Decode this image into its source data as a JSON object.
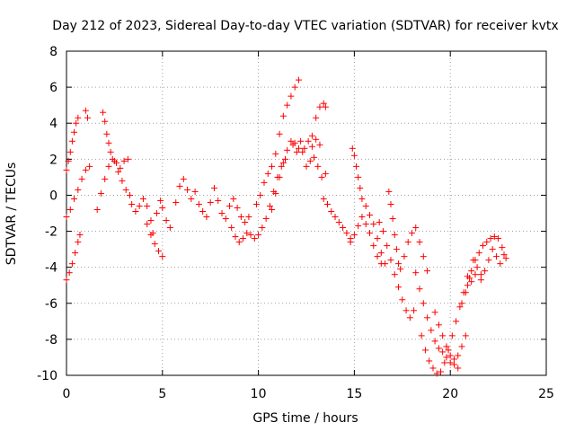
{
  "chart_data": {
    "type": "scatter",
    "title": "Day 212 of 2023, Sidereal Day-to-day VTEC variation (SDTVAR) for receiver kvtx",
    "xlabel": "GPS time / hours",
    "ylabel": "SDTVAR / TECUs",
    "xlim": [
      0,
      25
    ],
    "ylim": [
      -10,
      8
    ],
    "xticks": [
      0,
      5,
      10,
      15,
      20,
      25
    ],
    "yticks": [
      -10,
      -8,
      -6,
      -4,
      -2,
      0,
      2,
      4,
      6,
      8
    ],
    "grid": true,
    "marker": "+",
    "series": [
      {
        "color": "#ff0000",
        "points": [
          [
            0.0,
            1.4
          ],
          [
            0.1,
            1.9
          ],
          [
            0.2,
            2.4
          ],
          [
            0.3,
            3.0
          ],
          [
            0.4,
            3.5
          ],
          [
            0.5,
            4.0
          ],
          [
            0.6,
            4.3
          ],
          [
            1.0,
            4.7
          ],
          [
            1.1,
            4.3
          ],
          [
            0.0,
            -1.2
          ],
          [
            0.2,
            -0.8
          ],
          [
            0.4,
            -0.2
          ],
          [
            0.6,
            0.3
          ],
          [
            0.8,
            0.9
          ],
          [
            1.0,
            1.4
          ],
          [
            1.2,
            1.6
          ],
          [
            0.0,
            -4.7
          ],
          [
            0.15,
            -4.3
          ],
          [
            0.3,
            -3.8
          ],
          [
            0.45,
            -3.2
          ],
          [
            0.6,
            -2.6
          ],
          [
            0.7,
            -2.2
          ],
          [
            1.9,
            4.6
          ],
          [
            2.0,
            4.1
          ],
          [
            2.1,
            3.4
          ],
          [
            2.2,
            2.9
          ],
          [
            2.3,
            2.4
          ],
          [
            2.5,
            1.9
          ],
          [
            2.7,
            1.3
          ],
          [
            2.9,
            0.8
          ],
          [
            3.1,
            0.3
          ],
          [
            3.3,
            0.0
          ],
          [
            1.6,
            -0.8
          ],
          [
            1.8,
            0.1
          ],
          [
            2.0,
            0.9
          ],
          [
            2.2,
            1.6
          ],
          [
            2.4,
            2.0
          ],
          [
            2.6,
            1.8
          ],
          [
            2.8,
            1.5
          ],
          [
            3.0,
            1.9
          ],
          [
            3.2,
            2.0
          ],
          [
            3.4,
            -0.5
          ],
          [
            3.6,
            -0.9
          ],
          [
            3.8,
            -0.6
          ],
          [
            4.0,
            -0.2
          ],
          [
            4.2,
            -0.6
          ],
          [
            4.4,
            -1.4
          ],
          [
            4.5,
            -2.1
          ],
          [
            4.2,
            -1.6
          ],
          [
            4.4,
            -2.2
          ],
          [
            4.6,
            -2.7
          ],
          [
            4.8,
            -3.1
          ],
          [
            5.0,
            -3.4
          ],
          [
            4.7,
            -1.0
          ],
          [
            4.9,
            -0.3
          ],
          [
            5.0,
            -0.7
          ],
          [
            5.2,
            -1.4
          ],
          [
            5.4,
            -1.8
          ],
          [
            5.7,
            -0.4
          ],
          [
            5.9,
            0.5
          ],
          [
            6.1,
            0.9
          ],
          [
            6.3,
            0.3
          ],
          [
            6.5,
            -0.2
          ],
          [
            6.7,
            0.2
          ],
          [
            6.9,
            -0.5
          ],
          [
            7.1,
            -0.9
          ],
          [
            7.3,
            -1.2
          ],
          [
            7.5,
            -0.4
          ],
          [
            7.7,
            0.4
          ],
          [
            7.9,
            -0.3
          ],
          [
            8.1,
            -1.0
          ],
          [
            8.3,
            -1.3
          ],
          [
            8.5,
            -0.6
          ],
          [
            8.7,
            -0.2
          ],
          [
            8.9,
            -0.7
          ],
          [
            9.1,
            -1.2
          ],
          [
            9.3,
            -1.5
          ],
          [
            9.5,
            -1.2
          ],
          [
            8.6,
            -1.8
          ],
          [
            8.8,
            -2.3
          ],
          [
            9.0,
            -2.6
          ],
          [
            9.2,
            -2.4
          ],
          [
            9.4,
            -2.1
          ],
          [
            9.6,
            -2.2
          ],
          [
            9.8,
            -2.4
          ],
          [
            10.0,
            -2.2
          ],
          [
            10.2,
            -1.8
          ],
          [
            10.4,
            -1.3
          ],
          [
            10.6,
            -0.6
          ],
          [
            10.8,
            0.2
          ],
          [
            11.0,
            1.0
          ],
          [
            11.2,
            1.6
          ],
          [
            11.4,
            2.0
          ],
          [
            9.9,
            -0.5
          ],
          [
            10.1,
            0.0
          ],
          [
            10.3,
            0.7
          ],
          [
            10.5,
            1.2
          ],
          [
            10.7,
            1.6
          ],
          [
            10.9,
            2.3
          ],
          [
            11.1,
            3.4
          ],
          [
            11.3,
            4.4
          ],
          [
            11.5,
            5.0
          ],
          [
            11.7,
            5.5
          ],
          [
            11.9,
            6.0
          ],
          [
            12.1,
            6.4
          ],
          [
            10.7,
            -0.8
          ],
          [
            10.9,
            0.1
          ],
          [
            11.1,
            1.0
          ],
          [
            11.3,
            1.8
          ],
          [
            11.5,
            2.5
          ],
          [
            11.7,
            3.0
          ],
          [
            11.9,
            2.9
          ],
          [
            12.1,
            2.6
          ],
          [
            12.3,
            2.4
          ],
          [
            11.8,
            2.8
          ],
          [
            12.0,
            2.4
          ],
          [
            12.2,
            3.0
          ],
          [
            12.4,
            2.6
          ],
          [
            12.6,
            3.0
          ],
          [
            12.8,
            2.7
          ],
          [
            13.0,
            3.1
          ],
          [
            13.2,
            2.8
          ],
          [
            12.8,
            3.3
          ],
          [
            13.0,
            4.3
          ],
          [
            13.2,
            4.9
          ],
          [
            13.4,
            5.1
          ],
          [
            13.5,
            4.9
          ],
          [
            12.5,
            1.6
          ],
          [
            12.7,
            1.9
          ],
          [
            12.9,
            2.1
          ],
          [
            13.1,
            1.6
          ],
          [
            13.3,
            1.0
          ],
          [
            13.5,
            1.2
          ],
          [
            13.4,
            -0.2
          ],
          [
            13.6,
            -0.5
          ],
          [
            13.8,
            -0.9
          ],
          [
            14.0,
            -1.2
          ],
          [
            14.2,
            -1.5
          ],
          [
            14.4,
            -1.8
          ],
          [
            14.6,
            -2.1
          ],
          [
            14.8,
            -2.4
          ],
          [
            14.9,
            2.6
          ],
          [
            15.0,
            2.2
          ],
          [
            15.1,
            1.6
          ],
          [
            15.2,
            1.0
          ],
          [
            15.3,
            0.4
          ],
          [
            15.4,
            -0.2
          ],
          [
            15.6,
            -0.6
          ],
          [
            15.8,
            -1.1
          ],
          [
            16.0,
            -1.6
          ],
          [
            16.2,
            -2.4
          ],
          [
            16.4,
            -3.2
          ],
          [
            16.6,
            -3.8
          ],
          [
            14.8,
            -2.6
          ],
          [
            15.0,
            -2.2
          ],
          [
            15.2,
            -1.7
          ],
          [
            15.4,
            -1.2
          ],
          [
            15.6,
            -1.6
          ],
          [
            15.8,
            -2.1
          ],
          [
            16.0,
            -2.8
          ],
          [
            16.2,
            -3.4
          ],
          [
            16.4,
            -3.8
          ],
          [
            16.8,
            0.2
          ],
          [
            16.9,
            -0.5
          ],
          [
            17.0,
            -1.3
          ],
          [
            17.1,
            -2.2
          ],
          [
            17.2,
            -3.0
          ],
          [
            17.3,
            -3.8
          ],
          [
            17.4,
            -4.1
          ],
          [
            17.6,
            -3.4
          ],
          [
            17.8,
            -2.6
          ],
          [
            18.0,
            -2.1
          ],
          [
            18.2,
            -1.8
          ],
          [
            18.4,
            -2.6
          ],
          [
            18.6,
            -3.4
          ],
          [
            18.8,
            -4.2
          ],
          [
            16.3,
            -1.5
          ],
          [
            16.5,
            -2.0
          ],
          [
            16.7,
            -2.8
          ],
          [
            16.9,
            -3.6
          ],
          [
            17.1,
            -4.4
          ],
          [
            17.3,
            -5.1
          ],
          [
            17.5,
            -5.8
          ],
          [
            17.7,
            -6.4
          ],
          [
            17.9,
            -6.8
          ],
          [
            18.1,
            -6.4
          ],
          [
            18.2,
            -4.3
          ],
          [
            18.4,
            -5.2
          ],
          [
            18.6,
            -6.0
          ],
          [
            18.8,
            -6.8
          ],
          [
            19.0,
            -7.5
          ],
          [
            19.2,
            -8.1
          ],
          [
            19.4,
            -8.5
          ],
          [
            19.6,
            -8.7
          ],
          [
            19.8,
            -9.0
          ],
          [
            20.0,
            -9.3
          ],
          [
            20.2,
            -9.1
          ],
          [
            20.4,
            -8.9
          ],
          [
            20.6,
            -8.4
          ],
          [
            20.8,
            -7.8
          ],
          [
            18.5,
            -7.8
          ],
          [
            18.7,
            -8.6
          ],
          [
            18.9,
            -9.2
          ],
          [
            19.1,
            -9.6
          ],
          [
            19.3,
            -9.9
          ],
          [
            19.5,
            -9.8
          ],
          [
            19.7,
            -9.3
          ],
          [
            19.9,
            -8.6
          ],
          [
            20.1,
            -7.8
          ],
          [
            20.3,
            -7.0
          ],
          [
            20.5,
            -6.2
          ],
          [
            20.7,
            -5.4
          ],
          [
            20.9,
            -5.0
          ],
          [
            21.1,
            -4.8
          ],
          [
            19.2,
            -6.5
          ],
          [
            19.4,
            -7.2
          ],
          [
            19.6,
            -7.8
          ],
          [
            19.8,
            -8.4
          ],
          [
            20.0,
            -8.9
          ],
          [
            20.2,
            -9.4
          ],
          [
            20.4,
            -9.6
          ],
          [
            20.9,
            -4.5
          ],
          [
            21.1,
            -4.2
          ],
          [
            21.3,
            -3.6
          ],
          [
            21.5,
            -3.2
          ],
          [
            21.7,
            -2.8
          ],
          [
            21.9,
            -2.6
          ],
          [
            22.1,
            -2.4
          ],
          [
            22.3,
            -2.3
          ],
          [
            22.5,
            -2.4
          ],
          [
            22.7,
            -2.9
          ],
          [
            22.9,
            -3.5
          ],
          [
            21.2,
            -3.6
          ],
          [
            21.4,
            -4.0
          ],
          [
            21.6,
            -4.4
          ],
          [
            21.8,
            -4.2
          ],
          [
            22.0,
            -3.6
          ],
          [
            22.2,
            -3.0
          ],
          [
            22.4,
            -3.4
          ],
          [
            22.6,
            -3.8
          ],
          [
            22.8,
            -3.3
          ],
          [
            20.6,
            -6.0
          ],
          [
            20.8,
            -5.4
          ],
          [
            21.0,
            -4.6
          ],
          [
            21.3,
            -4.4
          ],
          [
            21.6,
            -4.7
          ]
        ]
      }
    ]
  }
}
